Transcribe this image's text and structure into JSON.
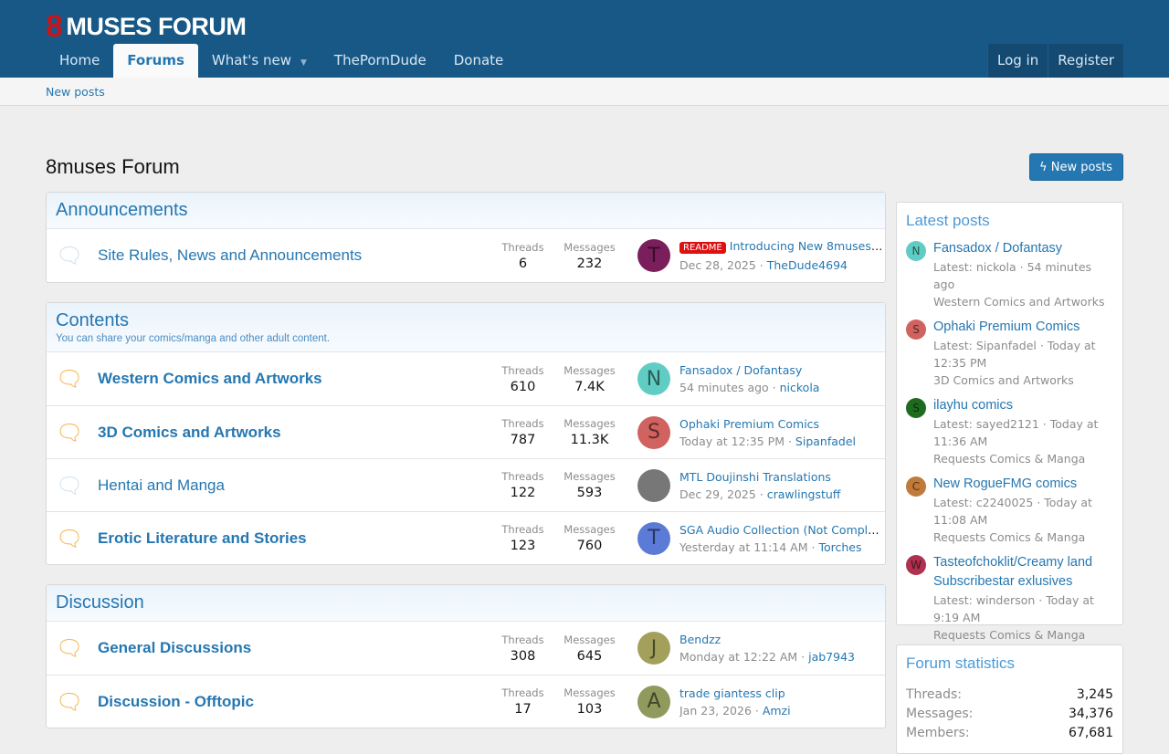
{
  "header": {
    "logo_mark": "8",
    "logo_text": "MUSES FORUM",
    "nav": [
      {
        "label": "Home"
      },
      {
        "label": "Forums"
      },
      {
        "label": "What's new"
      },
      {
        "label": "ThePornDude"
      },
      {
        "label": "Donate"
      }
    ],
    "login": "Log in",
    "register": "Register"
  },
  "subnav": {
    "new_posts": "New posts"
  },
  "page": {
    "title": "8muses Forum",
    "new_posts_button": "New posts"
  },
  "sections": [
    {
      "title": "Announcements",
      "description": "",
      "forums": [
        {
          "name": "Site Rules, News and Announcements",
          "unread": false,
          "threads_label": "Threads",
          "threads": "6",
          "messages_label": "Messages",
          "messages": "232",
          "avatar": "T",
          "avatar_color": "#7a1f5c",
          "prefix": "README",
          "last_title": "Introducing New 8muses ...",
          "last_time": "Dec 28, 2025",
          "last_user": "TheDude4694"
        }
      ]
    },
    {
      "title": "Contents",
      "description": "You can share your comics/manga and other adult content.",
      "forums": [
        {
          "name": "Western Comics and Artworks",
          "unread": true,
          "threads_label": "Threads",
          "threads": "610",
          "messages_label": "Messages",
          "messages": "7.4K",
          "avatar": "N",
          "avatar_color": "#5fcdc4",
          "last_title": "Fansadox / Dofantasy",
          "last_time": "54 minutes ago",
          "last_user": "nickola"
        },
        {
          "name": "3D Comics and Artworks",
          "unread": true,
          "threads_label": "Threads",
          "threads": "787",
          "messages_label": "Messages",
          "messages": "11.3K",
          "avatar": "S",
          "avatar_color": "#d0625f",
          "last_title": "Ophaki Premium Comics",
          "last_time": "Today at 12:35 PM",
          "last_user": "Sipanfadel"
        },
        {
          "name": "Hentai and Manga",
          "unread": false,
          "threads_label": "Threads",
          "threads": "122",
          "messages_label": "Messages",
          "messages": "593",
          "avatar": "",
          "avatar_color": "#777777",
          "last_title": "MTL Doujinshi Translations",
          "last_time": "Dec 29, 2025",
          "last_user": "crawlingstuff"
        },
        {
          "name": "Erotic Literature and Stories",
          "unread": true,
          "threads_label": "Threads",
          "threads": "123",
          "messages_label": "Messages",
          "messages": "760",
          "avatar": "T",
          "avatar_color": "#5b7bd6",
          "last_title": "SGA Audio Collection (Not Complet...",
          "last_time": "Yesterday at 11:14 AM",
          "last_user": "Torches"
        }
      ]
    },
    {
      "title": "Discussion",
      "description": "",
      "forums": [
        {
          "name": "General Discussions",
          "unread": true,
          "threads_label": "Threads",
          "threads": "308",
          "messages_label": "Messages",
          "messages": "645",
          "avatar": "J",
          "avatar_color": "#a3a05c",
          "last_title": "Bendzz",
          "last_time": "Monday at 12:22 AM",
          "last_user": "jab7943"
        },
        {
          "name": "Discussion - Offtopic",
          "unread": true,
          "threads_label": "Threads",
          "threads": "17",
          "messages_label": "Messages",
          "messages": "103",
          "avatar": "A",
          "avatar_color": "#8f9a5c",
          "last_title": "trade giantess clip",
          "last_time": "Jan 23, 2026",
          "last_user": "Amzi"
        }
      ]
    }
  ],
  "latest_posts": {
    "title": "Latest posts",
    "items": [
      {
        "avatar": "N",
        "color": "#5fcdc4",
        "title": "Fansadox / Dofantasy",
        "meta": "Latest: nickola · 54 minutes ago",
        "forum": "Western Comics and Artworks"
      },
      {
        "avatar": "S",
        "color": "#d0625f",
        "title": "Ophaki Premium Comics",
        "meta": "Latest: Sipanfadel · Today at 12:35 PM",
        "forum": "3D Comics and Artworks"
      },
      {
        "avatar": "S",
        "color": "#1e6b1e",
        "title": "ilayhu comics",
        "meta": "Latest: sayed2121 · Today at 11:36 AM",
        "forum": "Requests Comics & Manga"
      },
      {
        "avatar": "C",
        "color": "#c07a3a",
        "title": "New RogueFMG comics",
        "meta": "Latest: c2240025 · Today at 11:08 AM",
        "forum": "Requests Comics & Manga"
      },
      {
        "avatar": "W",
        "color": "#b03050",
        "title": "Tasteofchoklit/Creamy land Subscribestar exlusives",
        "meta": "Latest: winderson · Today at 9:19 AM",
        "forum": "Requests Comics & Manga"
      }
    ]
  },
  "forum_statistics": {
    "title": "Forum statistics",
    "rows": [
      {
        "label": "Threads:",
        "value": "3,245"
      },
      {
        "label": "Messages:",
        "value": "34,376"
      },
      {
        "label": "Members:",
        "value": "67,681"
      }
    ]
  }
}
